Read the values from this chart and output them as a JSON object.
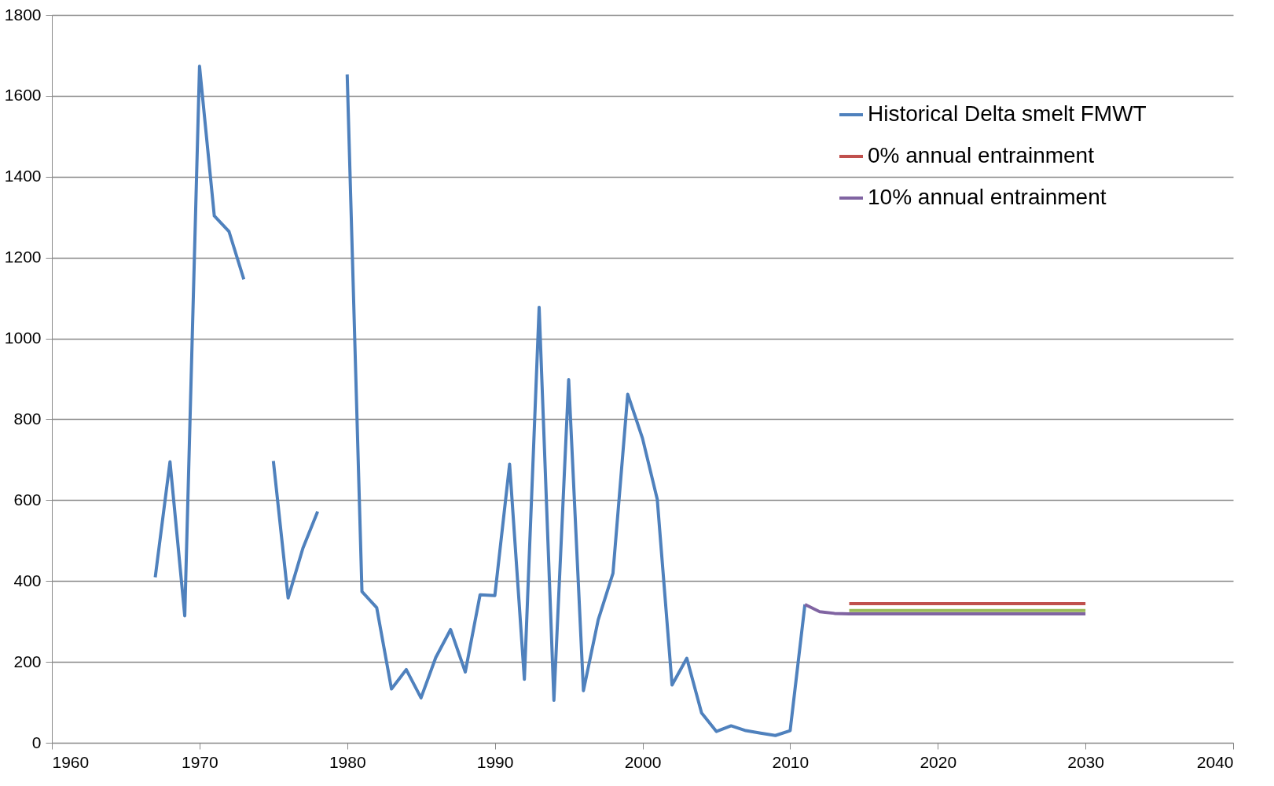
{
  "chart_data": {
    "type": "line",
    "xlim": [
      1960,
      2040
    ],
    "xticks": [
      1960,
      1970,
      1980,
      1990,
      2000,
      2010,
      2020,
      2030,
      2040
    ],
    "ylim": [
      0,
      1800
    ],
    "yticks": [
      0,
      200,
      400,
      600,
      800,
      1000,
      1200,
      1400,
      1600,
      1800
    ],
    "grid": "y",
    "legend": "top right",
    "marker": "none",
    "line_style": "solid",
    "series": [
      {
        "name": "Historical Delta smelt FMWT",
        "color": "#4f81bd",
        "x": [
          1967,
          1968,
          1969,
          1970,
          1971,
          1972,
          1973,
          1974,
          1975,
          1976,
          1977,
          1978,
          1979,
          1980,
          1981,
          1982,
          1983,
          1984,
          1985,
          1986,
          1987,
          1988,
          1989,
          1990,
          1991,
          1992,
          1993,
          1994,
          1995,
          1996,
          1997,
          1998,
          1999,
          2000,
          2001,
          2002,
          2003,
          2004,
          2005,
          2006,
          2007,
          2008,
          2009,
          2010,
          2011
        ],
        "values": [
          409,
          695,
          314,
          1673,
          1303,
          1264,
          1146,
          null,
          697,
          358,
          481,
          572,
          null,
          1653,
          374,
          334,
          133,
          181,
          111,
          211,
          280,
          175,
          366,
          364,
          689,
          157,
          1077,
          105,
          898,
          129,
          304,
          419,
          862,
          753,
          602,
          143,
          209,
          74,
          28,
          42,
          30,
          24,
          18,
          30,
          342
        ]
      },
      {
        "name": "0% annual entrainment",
        "color": "#c0504d",
        "x": [
          2014,
          2015,
          2016,
          2017,
          2018,
          2019,
          2020,
          2021,
          2022,
          2023,
          2024,
          2025,
          2026,
          2027,
          2028,
          2029,
          2030
        ],
        "values": [
          344,
          344,
          344,
          344,
          344,
          344,
          344,
          344,
          344,
          344,
          344,
          344,
          344,
          344,
          344,
          344,
          344
        ]
      },
      {
        "color": "#9bbb59",
        "x": [
          2014,
          2015,
          2016,
          2017,
          2018,
          2019,
          2020,
          2021,
          2022,
          2023,
          2024,
          2025,
          2026,
          2027,
          2028,
          2029,
          2030
        ],
        "values": [
          327,
          327,
          327,
          327,
          327,
          327,
          327,
          327,
          327,
          327,
          327,
          327,
          327,
          327,
          327,
          327,
          327
        ]
      },
      {
        "name": "10% annual entrainment",
        "color": "#8064a2",
        "x": [
          2011,
          2012,
          2013,
          2014,
          2015,
          2016,
          2017,
          2018,
          2019,
          2020,
          2021,
          2022,
          2023,
          2024,
          2025,
          2026,
          2027,
          2028,
          2029,
          2030
        ],
        "values": [
          342,
          324,
          320,
          319,
          319,
          319,
          319,
          319,
          319,
          319,
          319,
          319,
          319,
          319,
          319,
          319,
          319,
          319,
          319,
          319
        ]
      }
    ]
  }
}
